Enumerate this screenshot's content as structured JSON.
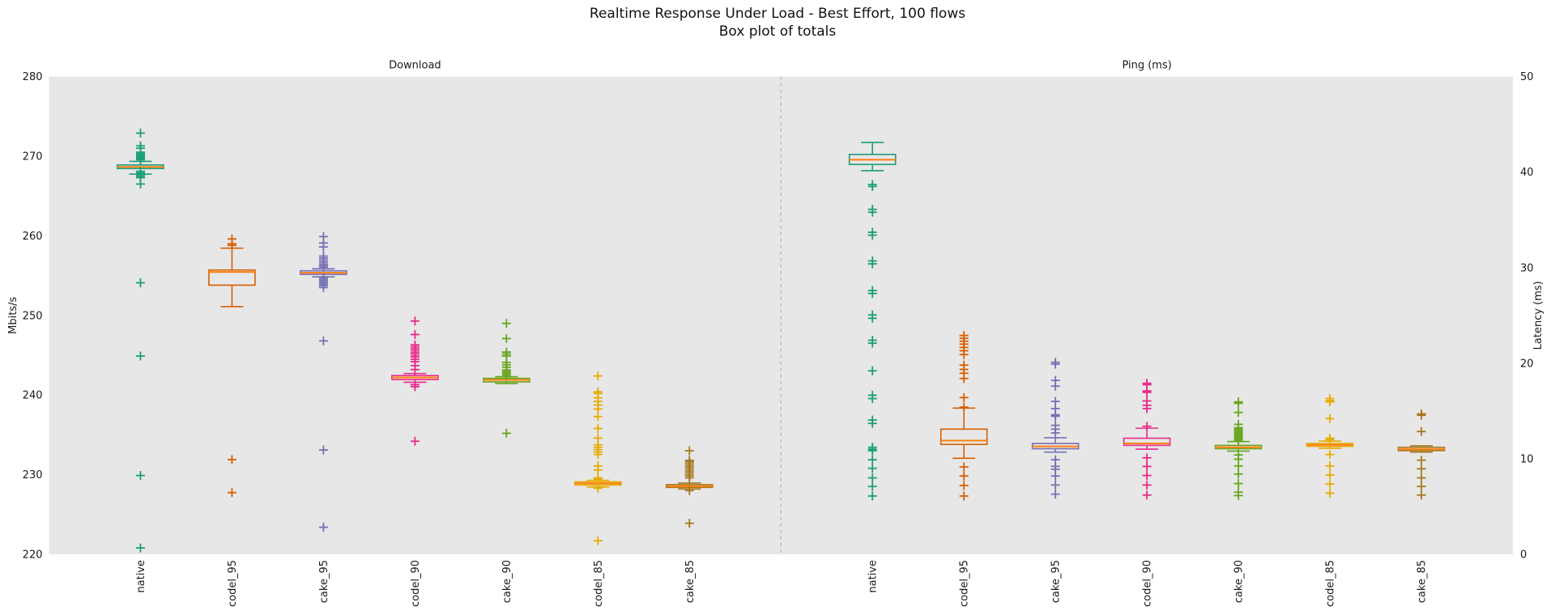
{
  "title": {
    "line1": "Realtime Response Under Load - Best Effort, 100 flows",
    "line2": "Box plot of totals"
  },
  "chart_data": {
    "type": "boxplot",
    "background_color": "#e7e7e7",
    "median_color": "#ff7f0e",
    "separator": {
      "style": "dashed",
      "color": "#aaaaaa"
    },
    "panels": [
      {
        "title": "Download",
        "ylabel": "Mbits/s",
        "yaxis_side": "left",
        "ylim": [
          220,
          280
        ],
        "yticks": [
          220,
          230,
          240,
          250,
          260,
          270,
          280
        ],
        "boxes": [
          {
            "label": "native",
            "color": "#1b9e77",
            "whislo": 267.75,
            "q1": 268.45,
            "med": 268.65,
            "q3": 268.9,
            "whishi": 269.35,
            "fliers": [
              272.9,
              271.3,
              271.0,
              270.5,
              270.3,
              270.15,
              270.0,
              269.85,
              269.7,
              269.55,
              268.1,
              267.9,
              267.7,
              267.5,
              267.3,
              266.5,
              254.1,
              244.9,
              229.9,
              220.8
            ]
          },
          {
            "label": "codel_95",
            "color": "#d95f02",
            "whislo": 251.1,
            "q1": 253.8,
            "med": 255.45,
            "q3": 255.7,
            "whishi": 258.45,
            "fliers": [
              259.6,
              259.0,
              258.8,
              231.9,
              227.75
            ]
          },
          {
            "label": "cake_95",
            "color": "#7570b3",
            "whislo": 254.85,
            "q1": 255.15,
            "med": 255.35,
            "q3": 255.6,
            "whishi": 255.85,
            "fliers": [
              259.9,
              259.1,
              258.6,
              257.45,
              257.2,
              256.95,
              256.7,
              256.45,
              256.25,
              256.05,
              254.75,
              254.55,
              254.35,
              254.15,
              253.95,
              253.75,
              253.5,
              246.8,
              233.1,
              223.4
            ]
          },
          {
            "label": "codel_90",
            "color": "#e7298a",
            "whislo": 241.6,
            "q1": 241.95,
            "med": 242.2,
            "q3": 242.45,
            "whishi": 242.7,
            "fliers": [
              249.3,
              247.6,
              246.3,
              246.05,
              245.8,
              245.55,
              245.3,
              245.05,
              244.8,
              244.5,
              244.2,
              243.7,
              243.2,
              241.3,
              241.05,
              234.2
            ]
          },
          {
            "label": "cake_90",
            "color": "#66a61e",
            "whislo": 241.45,
            "q1": 241.65,
            "med": 241.9,
            "q3": 242.1,
            "whishi": 242.3,
            "fliers": [
              249.0,
              247.1,
              245.4,
              245.15,
              244.9,
              244.1,
              243.8,
              243.5,
              243.15,
              242.95,
              242.75,
              242.55,
              242.35,
              235.2
            ]
          },
          {
            "label": "codel_85",
            "color": "#e6ab02",
            "whislo": 228.45,
            "q1": 228.7,
            "med": 228.9,
            "q3": 229.1,
            "whishi": 229.3,
            "fliers": [
              242.4,
              240.4,
              240.2,
              239.65,
              239.2,
              238.75,
              238.25,
              237.3,
              235.8,
              234.6,
              233.75,
              233.45,
              233.15,
              232.85,
              232.55,
              231.1,
              230.6,
              229.6,
              229.45,
              228.3,
              221.7
            ]
          },
          {
            "label": "cake_85",
            "color": "#a6761d",
            "whislo": 228.2,
            "q1": 228.4,
            "med": 228.55,
            "q3": 228.75,
            "whishi": 228.95,
            "fliers": [
              233.0,
              231.8,
              231.6,
              231.35,
              231.1,
              230.85,
              230.6,
              230.35,
              230.1,
              229.85,
              229.6,
              228.0,
              223.9
            ]
          }
        ]
      },
      {
        "title": "Ping (ms)",
        "ylabel": "Latency (ms)",
        "yaxis_side": "right",
        "ylim": [
          0,
          50
        ],
        "yticks": [
          0,
          10,
          20,
          30,
          40,
          50
        ],
        "boxes": [
          {
            "label": "native",
            "color": "#1b9e77",
            "whislo": 40.15,
            "q1": 40.8,
            "med": 41.3,
            "q3": 41.85,
            "whishi": 43.1,
            "fliers": [
              38.7,
              38.5,
              36.1,
              35.8,
              33.7,
              33.4,
              30.7,
              30.4,
              27.6,
              27.3,
              25.05,
              24.7,
              22.4,
              22.1,
              19.2,
              16.65,
              16.3,
              14.05,
              13.7,
              11.2,
              11.0,
              10.85,
              9.9,
              9.0,
              8.0,
              7.1,
              6.1
            ]
          },
          {
            "label": "codel_95",
            "color": "#d95f02",
            "whislo": 10.05,
            "q1": 11.5,
            "med": 11.9,
            "q3": 13.1,
            "whishi": 15.3,
            "fliers": [
              22.9,
              22.6,
              22.3,
              22.0,
              21.65,
              21.3,
              20.9,
              19.8,
              19.35,
              18.95,
              18.4,
              16.4,
              15.4,
              9.15,
              8.2,
              7.2,
              6.1
            ]
          },
          {
            "label": "cake_95",
            "color": "#7570b3",
            "whislo": 10.7,
            "q1": 11.05,
            "med": 11.3,
            "q3": 11.6,
            "whishi": 12.2,
            "fliers": [
              20.1,
              19.9,
              18.2,
              17.6,
              16.0,
              15.25,
              14.6,
              14.45,
              13.5,
              13.1,
              12.7,
              9.9,
              9.2,
              8.9,
              8.2,
              7.25,
              6.3
            ]
          },
          {
            "label": "codel_90",
            "color": "#e7298a",
            "whislo": 11.0,
            "q1": 11.4,
            "med": 11.6,
            "q3": 12.15,
            "whishi": 13.2,
            "fliers": [
              17.9,
              17.75,
              17.1,
              16.95,
              16.05,
              15.6,
              15.25,
              13.4,
              10.1,
              9.2,
              8.25,
              7.25,
              6.2
            ]
          },
          {
            "label": "cake_90",
            "color": "#66a61e",
            "whislo": 10.8,
            "q1": 11.05,
            "med": 11.2,
            "q3": 11.4,
            "whishi": 11.8,
            "fliers": [
              15.95,
              15.8,
              14.85,
              13.6,
              13.25,
              13.1,
              12.95,
              12.8,
              12.65,
              12.5,
              12.35,
              12.2,
              12.05,
              11.9,
              10.4,
              9.95,
              9.25,
              8.4,
              7.4,
              6.5,
              6.15
            ]
          },
          {
            "label": "codel_85",
            "color": "#e6ab02",
            "whislo": 11.1,
            "q1": 11.3,
            "med": 11.45,
            "q3": 11.6,
            "whishi": 11.85,
            "fliers": [
              16.3,
              16.1,
              15.95,
              14.2,
              12.15,
              12.0,
              10.45,
              9.25,
              8.3,
              7.35,
              6.4
            ]
          },
          {
            "label": "cake_85",
            "color": "#a6761d",
            "whislo": 10.7,
            "q1": 10.85,
            "med": 11.0,
            "q3": 11.2,
            "whishi": 11.35,
            "fliers": [
              14.7,
              14.55,
              12.85,
              9.85,
              8.95,
              8.0,
              7.1,
              6.2
            ]
          }
        ]
      }
    ]
  }
}
